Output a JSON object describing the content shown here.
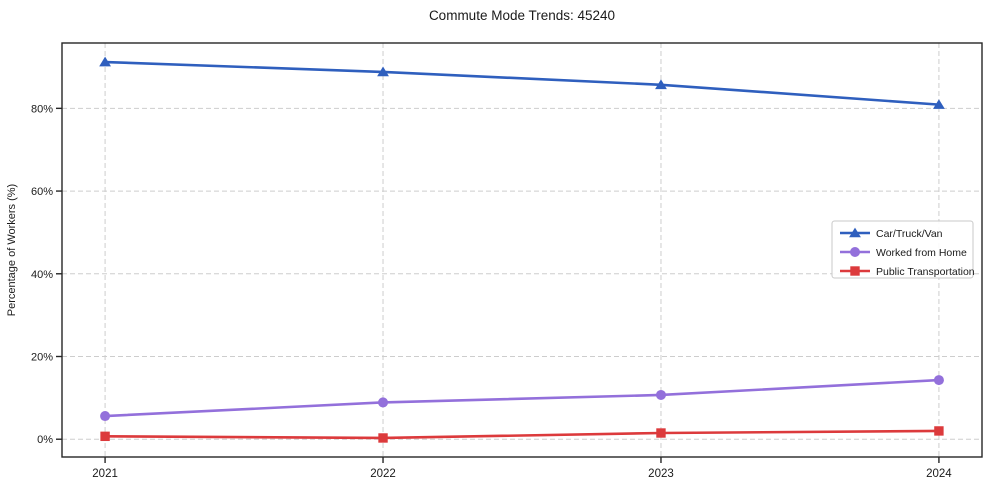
{
  "chart_data": {
    "type": "line",
    "title": "Commute Mode Trends: 45240",
    "xlabel": "",
    "ylabel": "Percentage of Workers (%)",
    "categories": [
      "2021",
      "2022",
      "2023",
      "2024"
    ],
    "series": [
      {
        "name": "Car/Truck/Van",
        "color": "#2f5fbe",
        "marker": "triangle",
        "values": [
          91.2,
          88.8,
          85.7,
          80.9
        ]
      },
      {
        "name": "Worked from Home",
        "color": "#9370db",
        "marker": "circle",
        "values": [
          5.6,
          8.9,
          10.7,
          14.3
        ]
      },
      {
        "name": "Public Transportation",
        "color": "#dc3a3c",
        "marker": "square",
        "values": [
          0.7,
          0.3,
          1.5,
          2.0
        ]
      }
    ],
    "yticks": [
      {
        "value": 0,
        "label": "0%"
      },
      {
        "value": 20,
        "label": "20%"
      },
      {
        "value": 40,
        "label": "40%"
      },
      {
        "value": 60,
        "label": "60%"
      },
      {
        "value": 80,
        "label": "80%"
      }
    ],
    "ylim": [
      -4.3,
      95.8
    ],
    "xlim": [
      -0.155,
      3.155
    ],
    "grid": true,
    "legend": {
      "position": "center right",
      "entries": [
        "Car/Truck/Van",
        "Worked from Home",
        "Public Transportation"
      ]
    },
    "colors": {
      "grid": "#cdcdcd",
      "spine": "#262626",
      "text": "#1a1a1a",
      "legend_border": "#c8c8c8"
    }
  }
}
